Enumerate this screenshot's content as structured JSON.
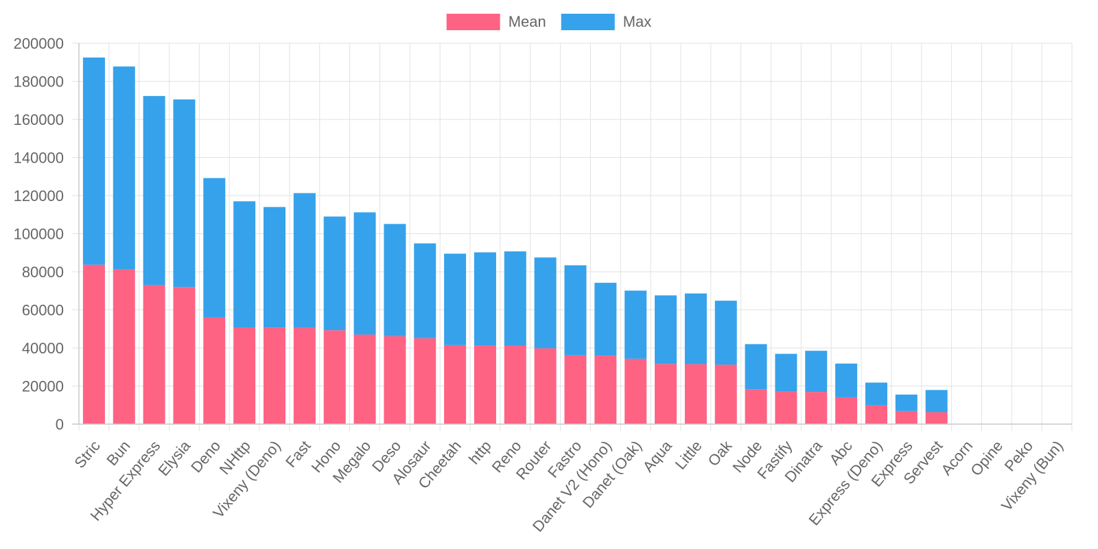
{
  "chart_data": {
    "type": "bar",
    "stacked": true,
    "title": "",
    "xlabel": "",
    "ylabel": "",
    "ylim": [
      0,
      200000
    ],
    "yticks": [
      0,
      20000,
      40000,
      60000,
      80000,
      100000,
      120000,
      140000,
      160000,
      180000,
      200000
    ],
    "grid": true,
    "legend": "top-center",
    "categories": [
      "Stric",
      "Bun",
      "Hyper Express",
      "Elysia",
      "Deno",
      "NHttp",
      "Vixeny (Deno)",
      "Fast",
      "Hono",
      "Megalo",
      "Deso",
      "Alosaur",
      "Cheetah",
      "http",
      "Reno",
      "Router",
      "Fastro",
      "Danet V2 (Hono)",
      "Danet (Oak)",
      "Aqua",
      "Little",
      "Oak",
      "Node",
      "Fastify",
      "Dinatra",
      "Abc",
      "Express (Deno)",
      "Express",
      "Servest",
      "Acorn",
      "Opine",
      "Peko",
      "Vixeny (Bun)"
    ],
    "series": [
      {
        "name": "Mean",
        "color": "#ff6384",
        "values": [
          83700,
          81300,
          73000,
          72000,
          55900,
          50800,
          50700,
          50500,
          49300,
          47000,
          46200,
          45100,
          41500,
          41200,
          41100,
          39800,
          36100,
          36000,
          34300,
          31600,
          31500,
          31200,
          18300,
          17000,
          16900,
          14100,
          9800,
          6900,
          6300,
          0,
          0,
          0,
          0
        ]
      },
      {
        "name": "Max",
        "color": "#36a2eb",
        "values": [
          108800,
          106500,
          99300,
          98500,
          73300,
          66200,
          63300,
          70800,
          59700,
          64200,
          58900,
          49800,
          48000,
          49000,
          49600,
          47700,
          47300,
          38200,
          35800,
          36000,
          37100,
          33600,
          23700,
          19900,
          21600,
          17700,
          12000,
          8600,
          11600,
          0,
          0,
          0,
          0
        ]
      }
    ]
  }
}
